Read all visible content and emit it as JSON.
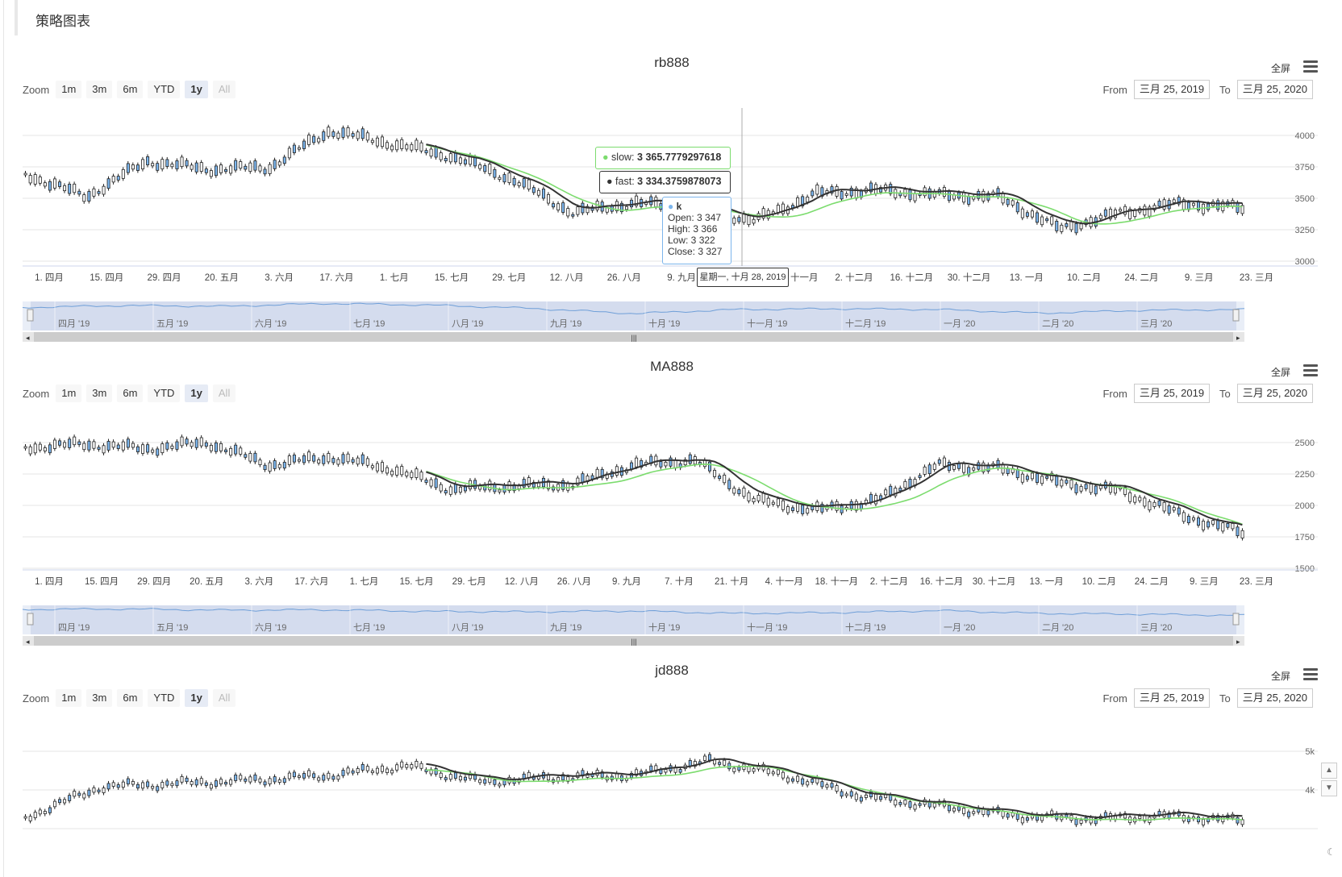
{
  "page": {
    "section_title": "策略图表"
  },
  "controls": {
    "zoom_label": "Zoom",
    "zoom_buttons": [
      "1m",
      "3m",
      "6m",
      "YTD",
      "1y",
      "All"
    ],
    "active_zoom": "1y",
    "from_label": "From",
    "to_label": "To",
    "from_value": "三月 25, 2019",
    "to_value": "三月 25, 2020",
    "fullscreen_label": "全屏"
  },
  "charts": [
    {
      "title": "rb888",
      "y_ticks": [
        "4000",
        "3750",
        "3500",
        "3250",
        "3000"
      ],
      "x_labels": [
        "1. 四月",
        "15. 四月",
        "29. 四月",
        "20. 五月",
        "3. 六月",
        "17. 六月",
        "1. 七月",
        "15. 七月",
        "29. 七月",
        "12. 八月",
        "26. 八月",
        "9. 九月",
        "7. 十月",
        "18. 十一月",
        "2. 十二月",
        "16. 十二月",
        "30. 十二月",
        "13. 一月",
        "10. 二月",
        "24. 二月",
        "9. 三月",
        "23. 三月"
      ],
      "navigator_labels": [
        "四月 '19",
        "五月 '19",
        "六月 '19",
        "七月 '19",
        "八月 '19",
        "九月 '19",
        "十月 '19",
        "十一月 '19",
        "十二月 '19",
        "一月 '20",
        "二月 '20",
        "三月 '20"
      ],
      "tooltip": {
        "date": "星期一, 十月 28, 2019",
        "slow_label": "slow:",
        "slow_value": "3 365.7779297618",
        "fast_label": "fast:",
        "fast_value": "3 334.3759878073",
        "k_label": "k",
        "open": "Open: 3 347",
        "high": "High: 3 366",
        "low": "Low: 3 322",
        "close": "Close: 3 327"
      }
    },
    {
      "title": "MA888",
      "y_ticks": [
        "2500",
        "2250",
        "2000",
        "1750",
        "1500"
      ],
      "x_labels": [
        "1. 四月",
        "15. 四月",
        "29. 四月",
        "20. 五月",
        "3. 六月",
        "17. 六月",
        "1. 七月",
        "15. 七月",
        "29. 七月",
        "12. 八月",
        "26. 八月",
        "9. 九月",
        "7. 十月",
        "21. 十月",
        "4. 十一月",
        "18. 十一月",
        "2. 十二月",
        "16. 十二月",
        "30. 十二月",
        "13. 一月",
        "10. 二月",
        "24. 二月",
        "9. 三月",
        "23. 三月"
      ],
      "navigator_labels": [
        "四月 '19",
        "五月 '19",
        "六月 '19",
        "七月 '19",
        "八月 '19",
        "九月 '19",
        "十月 '19",
        "十一月 '19",
        "十二月 '19",
        "一月 '20",
        "二月 '20",
        "三月 '20"
      ]
    },
    {
      "title": "jd888",
      "y_ticks": [
        "5k",
        "4k"
      ]
    }
  ],
  "colors": {
    "slow_line": "#7cdc6e",
    "fast_line": "#333333",
    "candle_up": "#ffffff",
    "candle_down": "#7cb5ec",
    "navigator": "#ccd6eb"
  }
}
